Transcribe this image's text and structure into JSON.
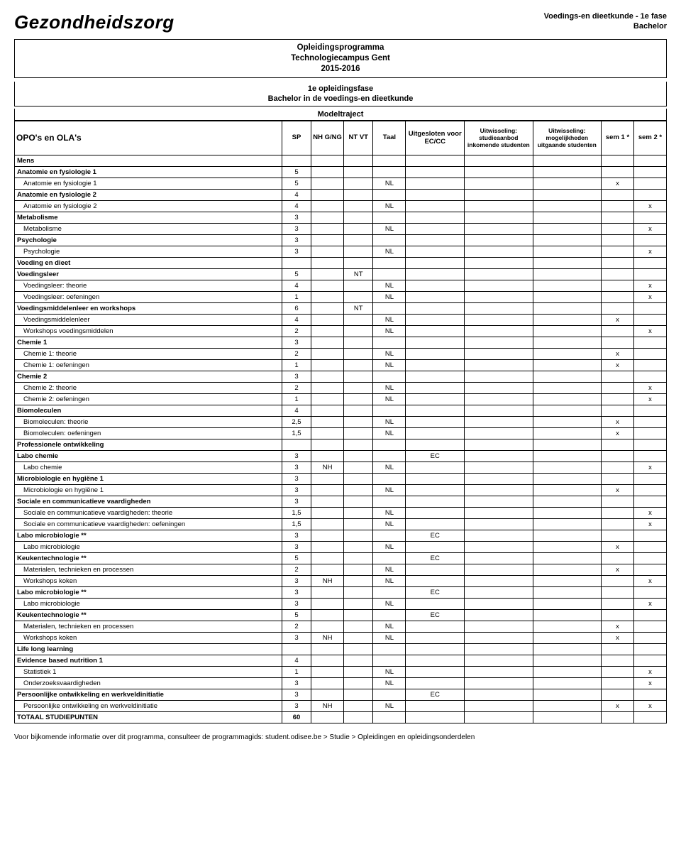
{
  "header": {
    "title": "Gezondheidszorg",
    "program_line": "Voedings-en dieetkunde - 1e fase",
    "degree": "Bachelor"
  },
  "program_box": {
    "line1": "Opleidingsprogramma",
    "line2": "Technologiecampus Gent",
    "line3": "2015-2016"
  },
  "phase_box": {
    "line1": "1e opleidingsfase",
    "line2": "Bachelor in de voedings-en dieetkunde"
  },
  "model_label": "Modeltraject",
  "columns": {
    "opo": "OPO's en OLA's",
    "sp": "SP",
    "nh": "NH G/NG",
    "nt": "NT VT",
    "taal": "Taal",
    "ec": "Uitgesloten voor EC/CC",
    "ex1": "Uitwisseling: studieaanbod inkomende studenten",
    "ex2": "Uitwisseling: mogelijkheden uitgaande studenten",
    "s1": "sem 1 *",
    "s2": "sem 2 *"
  },
  "rows": [
    {
      "t": "section",
      "name": "Mens"
    },
    {
      "t": "opo",
      "name": "Anatomie en fysiologie 1",
      "sp": "5"
    },
    {
      "t": "ola",
      "name": "Anatomie en fysiologie 1",
      "sp": "5",
      "taal": "NL",
      "s1": "x"
    },
    {
      "t": "opo",
      "name": "Anatomie en fysiologie 2",
      "sp": "4"
    },
    {
      "t": "ola",
      "name": "Anatomie en fysiologie 2",
      "sp": "4",
      "taal": "NL",
      "s2": "x"
    },
    {
      "t": "opo",
      "name": "Metabolisme",
      "sp": "3"
    },
    {
      "t": "ola",
      "name": "Metabolisme",
      "sp": "3",
      "taal": "NL",
      "s2": "x"
    },
    {
      "t": "opo",
      "name": "Psychologie",
      "sp": "3"
    },
    {
      "t": "ola",
      "name": "Psychologie",
      "sp": "3",
      "taal": "NL",
      "s2": "x"
    },
    {
      "t": "section",
      "name": "Voeding en dieet"
    },
    {
      "t": "opo",
      "name": "Voedingsleer",
      "sp": "5",
      "nt": "NT"
    },
    {
      "t": "ola",
      "name": "Voedingsleer: theorie",
      "sp": "4",
      "taal": "NL",
      "s2": "x"
    },
    {
      "t": "ola",
      "name": "Voedingsleer: oefeningen",
      "sp": "1",
      "taal": "NL",
      "s2": "x"
    },
    {
      "t": "opo",
      "name": "Voedingsmiddelenleer en workshops",
      "sp": "6",
      "nt": "NT"
    },
    {
      "t": "ola",
      "name": "Voedingsmiddelenleer",
      "sp": "4",
      "taal": "NL",
      "s1": "x"
    },
    {
      "t": "ola",
      "name": "Workshops voedingsmiddelen",
      "sp": "2",
      "taal": "NL",
      "s2": "x"
    },
    {
      "t": "opo",
      "name": "Chemie 1",
      "sp": "3"
    },
    {
      "t": "ola",
      "name": "Chemie 1: theorie",
      "sp": "2",
      "taal": "NL",
      "s1": "x"
    },
    {
      "t": "ola",
      "name": "Chemie 1: oefeningen",
      "sp": "1",
      "taal": "NL",
      "s1": "x"
    },
    {
      "t": "opo",
      "name": "Chemie 2",
      "sp": "3"
    },
    {
      "t": "ola",
      "name": "Chemie 2: theorie",
      "sp": "2",
      "taal": "NL",
      "s2": "x"
    },
    {
      "t": "ola",
      "name": "Chemie 2: oefeningen",
      "sp": "1",
      "taal": "NL",
      "s2": "x"
    },
    {
      "t": "opo",
      "name": "Biomoleculen",
      "sp": "4"
    },
    {
      "t": "ola",
      "name": "Biomoleculen: theorie",
      "sp": "2,5",
      "taal": "NL",
      "s1": "x"
    },
    {
      "t": "ola",
      "name": "Biomoleculen: oefeningen",
      "sp": "1,5",
      "taal": "NL",
      "s1": "x"
    },
    {
      "t": "section",
      "name": "Professionele ontwikkeling"
    },
    {
      "t": "opo",
      "name": "Labo chemie",
      "sp": "3",
      "ec": "EC"
    },
    {
      "t": "ola",
      "name": "Labo chemie",
      "sp": "3",
      "nh": "NH",
      "taal": "NL",
      "s2": "x"
    },
    {
      "t": "opo",
      "name": "Microbiologie en hygiëne 1",
      "sp": "3"
    },
    {
      "t": "ola",
      "name": "Microbiologie en hygiëne 1",
      "sp": "3",
      "taal": "NL",
      "s1": "x"
    },
    {
      "t": "opo",
      "name": "Sociale en communicatieve vaardigheden",
      "sp": "3"
    },
    {
      "t": "ola",
      "name": "Sociale en communicatieve vaardigheden: theorie",
      "sp": "1,5",
      "taal": "NL",
      "s2": "x"
    },
    {
      "t": "ola",
      "name": "Sociale en communicatieve vaardigheden: oefeningen",
      "sp": "1,5",
      "taal": "NL",
      "s2": "x"
    },
    {
      "t": "opo",
      "name": "Labo microbiologie **",
      "sp": "3",
      "ec": "EC"
    },
    {
      "t": "ola",
      "name": "Labo microbiologie",
      "sp": "3",
      "taal": "NL",
      "s1": "x"
    },
    {
      "t": "opo",
      "name": "Keukentechnologie **",
      "sp": "5",
      "ec": "EC"
    },
    {
      "t": "ola",
      "name": "Materialen, technieken en processen",
      "sp": "2",
      "taal": "NL",
      "s1": "x"
    },
    {
      "t": "ola",
      "name": "Workshops koken",
      "sp": "3",
      "nh": "NH",
      "taal": "NL",
      "s2": "x"
    },
    {
      "t": "opo",
      "name": "Labo microbiologie **",
      "sp": "3",
      "ec": "EC"
    },
    {
      "t": "ola",
      "name": "Labo microbiologie",
      "sp": "3",
      "taal": "NL",
      "s2": "x"
    },
    {
      "t": "opo",
      "name": "Keukentechnologie **",
      "sp": "5",
      "ec": "EC"
    },
    {
      "t": "ola",
      "name": "Materialen, technieken en processen",
      "sp": "2",
      "taal": "NL",
      "s1": "x"
    },
    {
      "t": "ola",
      "name": "Workshops koken",
      "sp": "3",
      "nh": "NH",
      "taal": "NL",
      "s1": "x"
    },
    {
      "t": "section",
      "name": "Life long learning"
    },
    {
      "t": "opo",
      "name": "Evidence based nutrition 1",
      "sp": "4"
    },
    {
      "t": "ola",
      "name": "Statistiek 1",
      "sp": "1",
      "taal": "NL",
      "s2": "x"
    },
    {
      "t": "ola",
      "name": "Onderzoeksvaardigheden",
      "sp": "3",
      "taal": "NL",
      "s2": "x"
    },
    {
      "t": "opo",
      "name": "Persoonlijke ontwikkeling en werkveldinitiatie",
      "sp": "3",
      "ec": "EC"
    },
    {
      "t": "ola",
      "name": "Persoonlijke ontwikkeling en werkveldinitiatie",
      "sp": "3",
      "nh": "NH",
      "taal": "NL",
      "s1": "x",
      "s2": "x"
    },
    {
      "t": "totaal",
      "name": "TOTAAL STUDIEPUNTEN",
      "sp": "60"
    }
  ],
  "footer": "Voor bijkomende informatie over dit programma, consulteer de programmagids: student.odisee.be > Studie > Opleidingen en opleidingsonderdelen"
}
